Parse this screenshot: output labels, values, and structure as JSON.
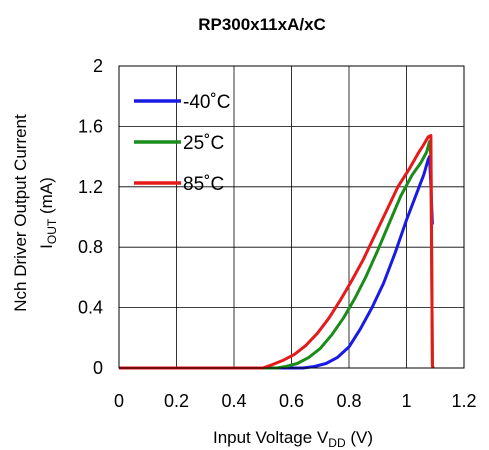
{
  "chart_data": {
    "type": "line",
    "title": "RP300x11xA/xC",
    "xlabel": {
      "main": "Input Voltage V",
      "sub": "DD",
      "suffix": " (V)"
    },
    "ylabel": {
      "line1": "Nch Driver Output Current",
      "line2_main": "I",
      "line2_sub": "OUT",
      "line2_suffix": " (mA)"
    },
    "xlim": [
      0,
      1.2
    ],
    "ylim": [
      0,
      2
    ],
    "xticks": [
      {
        "value": 0,
        "label": "0"
      },
      {
        "value": 0.2,
        "label": "0.2"
      },
      {
        "value": 0.4,
        "label": "0.4"
      },
      {
        "value": 0.6,
        "label": "0.6"
      },
      {
        "value": 0.8,
        "label": "0.8"
      },
      {
        "value": 1.0,
        "label": "1"
      },
      {
        "value": 1.2,
        "label": "1.2"
      }
    ],
    "yticks": [
      {
        "value": 0,
        "label": "0"
      },
      {
        "value": 0.4,
        "label": "0.4"
      },
      {
        "value": 0.8,
        "label": "0.8"
      },
      {
        "value": 1.2,
        "label": "1.2"
      },
      {
        "value": 1.6,
        "label": "1.6"
      },
      {
        "value": 2.0,
        "label": "2"
      }
    ],
    "grid": true,
    "legend_position": "top-left",
    "series": [
      {
        "name": "-40˚C",
        "color": "#1a1ae6",
        "points": [
          [
            0,
            0
          ],
          [
            0.6,
            0
          ],
          [
            0.64,
            0
          ],
          [
            0.68,
            0.01
          ],
          [
            0.72,
            0.03
          ],
          [
            0.76,
            0.07
          ],
          [
            0.8,
            0.14
          ],
          [
            0.84,
            0.26
          ],
          [
            0.88,
            0.4
          ],
          [
            0.92,
            0.56
          ],
          [
            0.96,
            0.76
          ],
          [
            1.0,
            0.98
          ],
          [
            1.04,
            1.18
          ],
          [
            1.06,
            1.28
          ],
          [
            1.075,
            1.38
          ],
          [
            1.08,
            1.4
          ],
          [
            1.085,
            1.2
          ],
          [
            1.09,
            0.95
          ]
        ]
      },
      {
        "name": "25˚C",
        "color": "#1a8c1a",
        "points": [
          [
            0,
            0
          ],
          [
            0.55,
            0
          ],
          [
            0.58,
            0.01
          ],
          [
            0.62,
            0.03
          ],
          [
            0.66,
            0.07
          ],
          [
            0.7,
            0.13
          ],
          [
            0.74,
            0.22
          ],
          [
            0.78,
            0.33
          ],
          [
            0.82,
            0.46
          ],
          [
            0.86,
            0.61
          ],
          [
            0.9,
            0.78
          ],
          [
            0.94,
            0.96
          ],
          [
            0.98,
            1.14
          ],
          [
            1.02,
            1.28
          ],
          [
            1.05,
            1.36
          ],
          [
            1.07,
            1.43
          ],
          [
            1.08,
            1.5
          ],
          [
            1.085,
            1.4
          ],
          [
            1.09,
            0.02
          ],
          [
            1.092,
            0
          ]
        ]
      },
      {
        "name": "85˚C",
        "color": "#e61a1a",
        "points": [
          [
            0,
            0
          ],
          [
            0.5,
            0
          ],
          [
            0.53,
            0.02
          ],
          [
            0.57,
            0.05
          ],
          [
            0.61,
            0.09
          ],
          [
            0.65,
            0.15
          ],
          [
            0.69,
            0.23
          ],
          [
            0.73,
            0.33
          ],
          [
            0.77,
            0.45
          ],
          [
            0.81,
            0.58
          ],
          [
            0.85,
            0.72
          ],
          [
            0.89,
            0.88
          ],
          [
            0.93,
            1.04
          ],
          [
            0.97,
            1.2
          ],
          [
            1.01,
            1.32
          ],
          [
            1.04,
            1.42
          ],
          [
            1.06,
            1.48
          ],
          [
            1.075,
            1.53
          ],
          [
            1.085,
            1.54
          ],
          [
            1.09,
            0.02
          ],
          [
            1.092,
            0
          ]
        ]
      }
    ]
  }
}
